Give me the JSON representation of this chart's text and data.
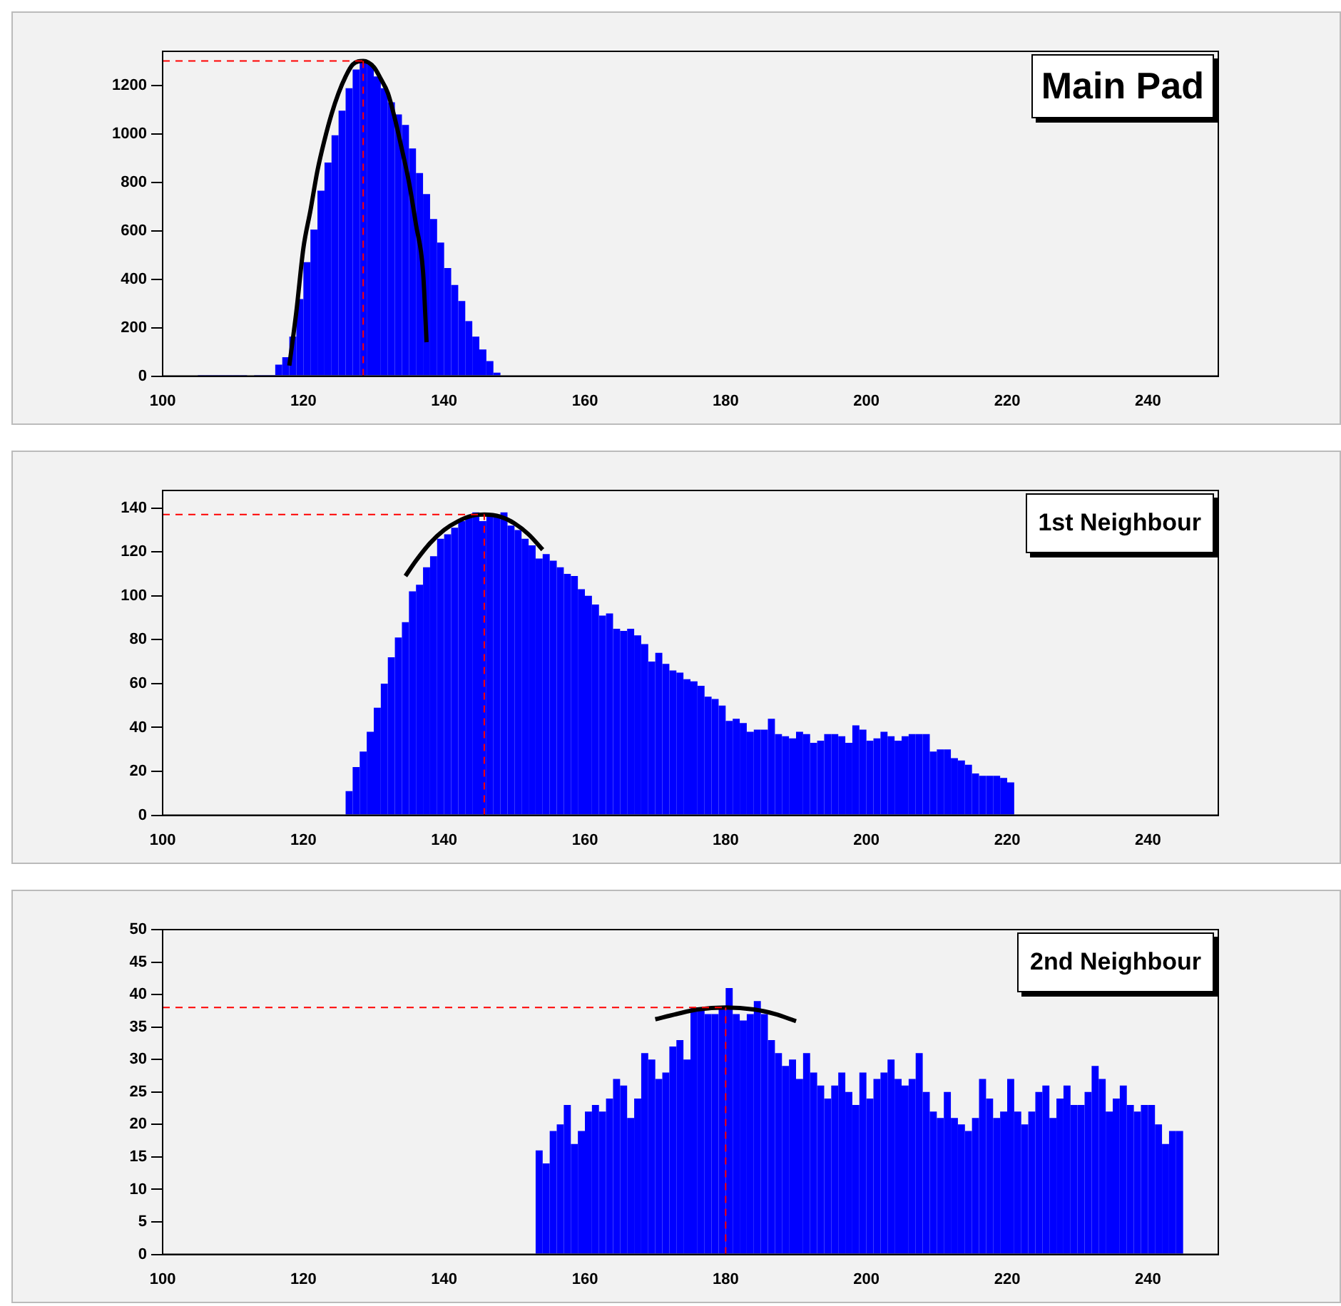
{
  "chart_data": [
    {
      "type": "histogram",
      "title": "Main Pad",
      "xlim": [
        100,
        250
      ],
      "xticks": [
        100,
        120,
        140,
        160,
        180,
        200,
        220,
        240
      ],
      "ylim": [
        0,
        1340
      ],
      "yticks": [
        0,
        200,
        400,
        600,
        800,
        1000,
        1200
      ],
      "grid": false,
      "legend": false,
      "series": [
        {
          "color": "#0000ff",
          "bins": [
            100,
            101,
            102,
            103,
            104,
            105,
            106,
            107,
            108,
            109,
            110,
            111,
            112,
            113,
            114,
            115,
            116,
            117,
            118,
            119,
            120,
            121,
            122,
            123,
            124,
            125,
            126,
            127,
            128,
            129,
            130,
            131,
            132,
            133,
            134,
            135,
            136,
            137,
            138,
            139,
            140,
            141,
            142,
            143,
            144,
            145,
            146,
            147,
            148
          ],
          "values": [
            0,
            0,
            0,
            0,
            0,
            5,
            5,
            5,
            5,
            5,
            5,
            5,
            0,
            5,
            5,
            5,
            47,
            78,
            163,
            318,
            470,
            605,
            765,
            881,
            994,
            1095,
            1188,
            1265,
            1300,
            1290,
            1236,
            1188,
            1130,
            1080,
            1036,
            939,
            838,
            751,
            648,
            551,
            446,
            376,
            310,
            227,
            163,
            110,
            62,
            14
          ]
        },
        {
          "type": "line",
          "color": "#000000",
          "x": [
            118,
            119,
            120,
            121,
            122,
            123,
            124,
            125,
            126,
            127,
            128.5,
            130,
            131,
            132,
            133,
            134,
            135,
            136,
            137,
            137.5
          ],
          "values": [
            43,
            266,
            528,
            683,
            848,
            974,
            1081,
            1168,
            1236,
            1285,
            1300,
            1275,
            1226,
            1168,
            1062,
            935,
            800,
            625,
            431,
            140
          ]
        }
      ],
      "ref_lines": [
        {
          "axis": "x",
          "value": 128.5,
          "color": "#ff0000",
          "line_style": "dashed"
        },
        {
          "axis": "y",
          "value": 1300,
          "color": "#ff0000",
          "line_style": "dashed"
        }
      ]
    },
    {
      "type": "histogram",
      "title": "1st Neighbour",
      "xlim": [
        100,
        250
      ],
      "xticks": [
        100,
        120,
        140,
        160,
        180,
        200,
        220,
        240
      ],
      "ylim": [
        0,
        148
      ],
      "yticks": [
        0,
        20,
        40,
        60,
        80,
        100,
        120,
        140
      ],
      "grid": false,
      "legend": false,
      "series": [
        {
          "color": "#0000ff",
          "bins": [
            126,
            127,
            128,
            129,
            130,
            131,
            132,
            133,
            134,
            135,
            136,
            137,
            138,
            139,
            140,
            141,
            142,
            143,
            144,
            145,
            146,
            147,
            148,
            149,
            150,
            151,
            152,
            153,
            154,
            155,
            156,
            157,
            158,
            159,
            160,
            161,
            162,
            163,
            164,
            165,
            166,
            167,
            168,
            169,
            170,
            171,
            172,
            173,
            174,
            175,
            176,
            177,
            178,
            179,
            180,
            181,
            182,
            183,
            184,
            185,
            186,
            187,
            188,
            189,
            190,
            191,
            192,
            193,
            194,
            195,
            196,
            197,
            198,
            199,
            200,
            201,
            202,
            203,
            204,
            205,
            206,
            207,
            208,
            209,
            210,
            211,
            212,
            213,
            214,
            215,
            216,
            217,
            218,
            219,
            220,
            221
          ],
          "values": [
            11,
            22,
            29,
            38,
            49,
            60,
            72,
            81,
            88,
            102,
            105,
            113,
            118,
            126,
            128,
            131,
            134,
            136,
            138,
            134,
            137,
            137,
            138,
            132,
            130,
            126,
            123,
            117,
            119,
            116,
            113,
            110,
            109,
            103,
            100,
            96,
            91,
            92,
            85,
            84,
            85,
            82,
            78,
            70,
            74,
            69,
            66,
            65,
            62,
            61,
            59,
            54,
            53,
            50,
            43,
            44,
            42,
            38,
            39,
            39,
            44,
            37,
            36,
            35,
            38,
            37,
            33,
            34,
            37,
            37,
            36,
            33,
            41,
            39,
            34,
            35,
            38,
            36,
            34,
            36,
            37,
            37,
            37,
            29,
            30,
            30,
            26,
            25,
            23,
            19,
            18,
            18,
            18,
            17,
            15
          ]
        },
        {
          "type": "line",
          "color": "#000000",
          "x": [
            134.5,
            136,
            138,
            140,
            142,
            144,
            145.7,
            148,
            150,
            152,
            154
          ],
          "values": [
            109,
            116,
            124,
            130,
            134,
            136.5,
            137,
            136,
            133,
            128,
            121
          ]
        }
      ],
      "ref_lines": [
        {
          "axis": "x",
          "value": 145.7,
          "color": "#ff0000",
          "line_style": "dashed"
        },
        {
          "axis": "y",
          "value": 137,
          "color": "#ff0000",
          "line_style": "dashed"
        }
      ]
    },
    {
      "type": "histogram",
      "title": "2nd Neighbour",
      "xlim": [
        100,
        250
      ],
      "xticks": [
        100,
        120,
        140,
        160,
        180,
        200,
        220,
        240
      ],
      "ylim": [
        0,
        50
      ],
      "yticks": [
        0,
        5,
        10,
        15,
        20,
        25,
        30,
        35,
        40,
        45,
        50
      ],
      "grid": false,
      "legend": false,
      "series": [
        {
          "color": "#0000ff",
          "bins": [
            153,
            154,
            155,
            156,
            157,
            158,
            159,
            160,
            161,
            162,
            163,
            164,
            165,
            166,
            167,
            168,
            169,
            170,
            171,
            172,
            173,
            174,
            175,
            176,
            177,
            178,
            179,
            180,
            181,
            182,
            183,
            184,
            185,
            186,
            187,
            188,
            189,
            190,
            191,
            192,
            193,
            194,
            195,
            196,
            197,
            198,
            199,
            200,
            201,
            202,
            203,
            204,
            205,
            206,
            207,
            208,
            209,
            210,
            211,
            212,
            213,
            214,
            215,
            216,
            217,
            218,
            219,
            220,
            221,
            222,
            223,
            224,
            225,
            226,
            227,
            228,
            229,
            230,
            231,
            232,
            233,
            234,
            235,
            236,
            237,
            238,
            239,
            240,
            241,
            242,
            243,
            244,
            245
          ],
          "values": [
            16,
            14,
            19,
            20,
            23,
            17,
            19,
            22,
            23,
            22,
            24,
            27,
            26,
            21,
            24,
            31,
            30,
            27,
            28,
            32,
            33,
            30,
            38,
            38,
            37,
            37,
            38,
            41,
            37,
            36,
            37,
            39,
            37,
            33,
            31,
            29,
            30,
            27,
            31,
            28,
            26,
            24,
            26,
            28,
            25,
            23,
            28,
            24,
            27,
            28,
            30,
            27,
            26,
            27,
            31,
            25,
            22,
            21,
            25,
            21,
            20,
            19,
            21,
            27,
            24,
            21,
            22,
            27,
            22,
            20,
            22,
            25,
            26,
            21,
            24,
            26,
            23,
            23,
            25,
            29,
            27,
            22,
            24,
            26,
            23,
            22,
            23,
            23,
            20,
            17,
            19,
            19
          ]
        },
        {
          "type": "line",
          "color": "#000000",
          "x": [
            170,
            173,
            176,
            180,
            184,
            187,
            190
          ],
          "values": [
            36.2,
            37,
            37.7,
            38,
            37.7,
            37,
            35.9
          ]
        }
      ],
      "ref_lines": [
        {
          "axis": "x",
          "value": 180,
          "color": "#ff0000",
          "line_style": "dashed"
        },
        {
          "axis": "y",
          "value": 38,
          "color": "#ff0000",
          "line_style": "dashed"
        }
      ]
    }
  ]
}
